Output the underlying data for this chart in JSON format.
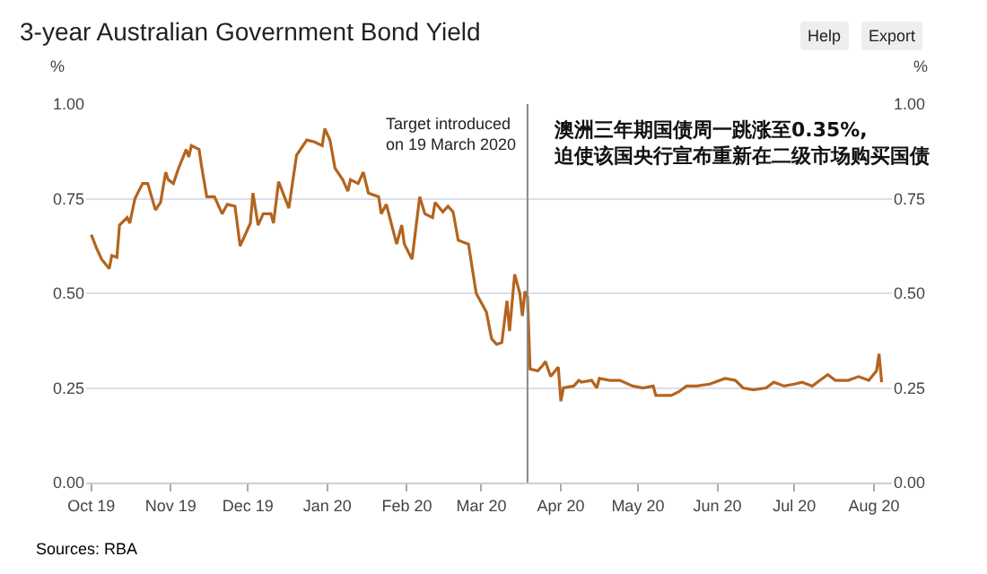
{
  "chart_data": {
    "type": "line",
    "title": "3-year Australian Government Bond Yield",
    "ylabel": "%",
    "y2label": "%",
    "annotations": [
      "澳洲三年期国债周一跳涨至0.35%,\n迫使该国央行宣布重新在二级市场购买国债",
      "Sources: RBA",
      "Help",
      "Export"
    ],
    "x": [
      "2019-10-01",
      "2019-10-03",
      "2019-10-05",
      "2019-10-08",
      "2019-10-09",
      "2019-10-11",
      "2019-10-12",
      "2019-10-15",
      "2019-10-16",
      "2019-10-18",
      "2019-10-21",
      "2019-10-23",
      "2019-10-26",
      "2019-10-28",
      "2019-10-30",
      "2019-10-31",
      "2019-11-02",
      "2019-11-04",
      "2019-11-07",
      "2019-11-08",
      "2019-11-09",
      "2019-11-12",
      "2019-11-13",
      "2019-11-15",
      "2019-11-18",
      "2019-11-21",
      "2019-11-23",
      "2019-11-26",
      "2019-11-28",
      "2019-12-02",
      "2019-12-03",
      "2019-12-05",
      "2019-12-07",
      "2019-12-10",
      "2019-12-11",
      "2019-12-13",
      "2019-12-17",
      "2019-12-20",
      "2019-12-24",
      "2019-12-27",
      "2019-12-30",
      "2019-12-31",
      "2020-01-02",
      "2020-01-04",
      "2020-01-07",
      "2020-01-09",
      "2020-01-10",
      "2020-01-13",
      "2020-01-15",
      "2020-01-17",
      "2020-01-21",
      "2020-01-22",
      "2020-01-24",
      "2020-01-28",
      "2020-01-30",
      "2020-01-31",
      "2020-02-03",
      "2020-02-06",
      "2020-02-08",
      "2020-02-11",
      "2020-02-12",
      "2020-02-15",
      "2020-02-17",
      "2020-02-19",
      "2020-02-21",
      "2020-02-25",
      "2020-02-28",
      "2020-03-03",
      "2020-03-05",
      "2020-03-07",
      "2020-03-09",
      "2020-03-11",
      "2020-03-12",
      "2020-03-14",
      "2020-03-16",
      "2020-03-17",
      "2020-03-18",
      "2020-03-19",
      "2020-03-20",
      "2020-03-23",
      "2020-03-25",
      "2020-03-26",
      "2020-03-28",
      "2020-03-31",
      "2020-04-01",
      "2020-04-02",
      "2020-04-06",
      "2020-04-08",
      "2020-04-09",
      "2020-04-13",
      "2020-04-15",
      "2020-04-16",
      "2020-04-20",
      "2020-04-24",
      "2020-04-29",
      "2020-05-03",
      "2020-05-07",
      "2020-05-08",
      "2020-05-14",
      "2020-05-17",
      "2020-05-20",
      "2020-05-24",
      "2020-05-29",
      "2020-06-04",
      "2020-06-08",
      "2020-06-11",
      "2020-06-15",
      "2020-06-20",
      "2020-06-23",
      "2020-06-27",
      "2020-07-01",
      "2020-07-04",
      "2020-07-08",
      "2020-07-11",
      "2020-07-14",
      "2020-07-17",
      "2020-07-22",
      "2020-07-26",
      "2020-07-30",
      "2020-08-02",
      "2020-08-03",
      "2020-08-04"
    ],
    "series": [
      {
        "color": "#b4641e",
        "values": [
          0.655,
          0.62,
          0.59,
          0.565,
          0.6,
          0.595,
          0.68,
          0.7,
          0.685,
          0.75,
          0.79,
          0.79,
          0.72,
          0.74,
          0.82,
          0.8,
          0.79,
          0.83,
          0.88,
          0.86,
          0.89,
          0.88,
          0.835,
          0.755,
          0.755,
          0.71,
          0.735,
          0.73,
          0.625,
          0.685,
          0.765,
          0.68,
          0.71,
          0.71,
          0.685,
          0.795,
          0.725,
          0.865,
          0.905,
          0.9,
          0.89,
          0.935,
          0.905,
          0.83,
          0.8,
          0.77,
          0.8,
          0.79,
          0.82,
          0.765,
          0.755,
          0.71,
          0.735,
          0.63,
          0.68,
          0.63,
          0.59,
          0.755,
          0.71,
          0.7,
          0.74,
          0.715,
          0.73,
          0.715,
          0.64,
          0.63,
          0.5,
          0.45,
          0.38,
          0.365,
          0.37,
          0.48,
          0.4,
          0.55,
          0.5,
          0.44,
          0.505,
          0.49,
          0.3,
          0.295,
          0.31,
          0.32,
          0.28,
          0.305,
          0.215,
          0.25,
          0.255,
          0.27,
          0.265,
          0.27,
          0.25,
          0.275,
          0.27,
          0.27,
          0.255,
          0.25,
          0.255,
          0.23,
          0.23,
          0.24,
          0.255,
          0.255,
          0.26,
          0.275,
          0.27,
          0.25,
          0.245,
          0.25,
          0.265,
          0.255,
          0.26,
          0.265,
          0.255,
          0.27,
          0.285,
          0.27,
          0.27,
          0.28,
          0.27,
          0.295,
          0.34,
          0.265
        ]
      }
    ],
    "xlim": [
      "2019-09-29",
      "2020-08-08"
    ],
    "xticks": [
      {
        "value": "2019-10-01",
        "label": "Oct 19"
      },
      {
        "value": "2019-11-01",
        "label": "Nov 19"
      },
      {
        "value": "2019-12-01",
        "label": "Dec 19"
      },
      {
        "value": "2020-01-01",
        "label": "Jan 20"
      },
      {
        "value": "2020-02-01",
        "label": "Feb 20"
      },
      {
        "value": "2020-03-01",
        "label": "Mar 20"
      },
      {
        "value": "2020-04-01",
        "label": "Apr 20"
      },
      {
        "value": "2020-05-01",
        "label": "May 20"
      },
      {
        "value": "2020-06-01",
        "label": "Jun 20"
      },
      {
        "value": "2020-07-01",
        "label": "Jul 20"
      },
      {
        "value": "2020-08-01",
        "label": "Aug 20"
      }
    ],
    "ylim": [
      0,
      1
    ],
    "yticks": [
      {
        "value": 0,
        "label": "0.00"
      },
      {
        "value": 0.25,
        "label": "0.25"
      },
      {
        "value": 0.5,
        "label": "0.50"
      },
      {
        "value": 0.75,
        "label": "0.75"
      },
      {
        "value": 1,
        "label": "1.00"
      }
    ],
    "y2lim": [
      0,
      1
    ],
    "y2ticks": [
      {
        "value": 0,
        "label": "0.00"
      },
      {
        "value": 0.25,
        "label": "0.25"
      },
      {
        "value": 0.5,
        "label": "0.50"
      },
      {
        "value": 0.75,
        "label": "0.75"
      },
      {
        "value": 1,
        "label": "1.00"
      }
    ],
    "ref_lines": [
      {
        "axis": "x",
        "value": "2020-03-19",
        "label": "Target introduced\non 19 March 2020",
        "color": "#888888"
      }
    ],
    "grid": "y",
    "marker": "none",
    "line_style": "solid"
  }
}
